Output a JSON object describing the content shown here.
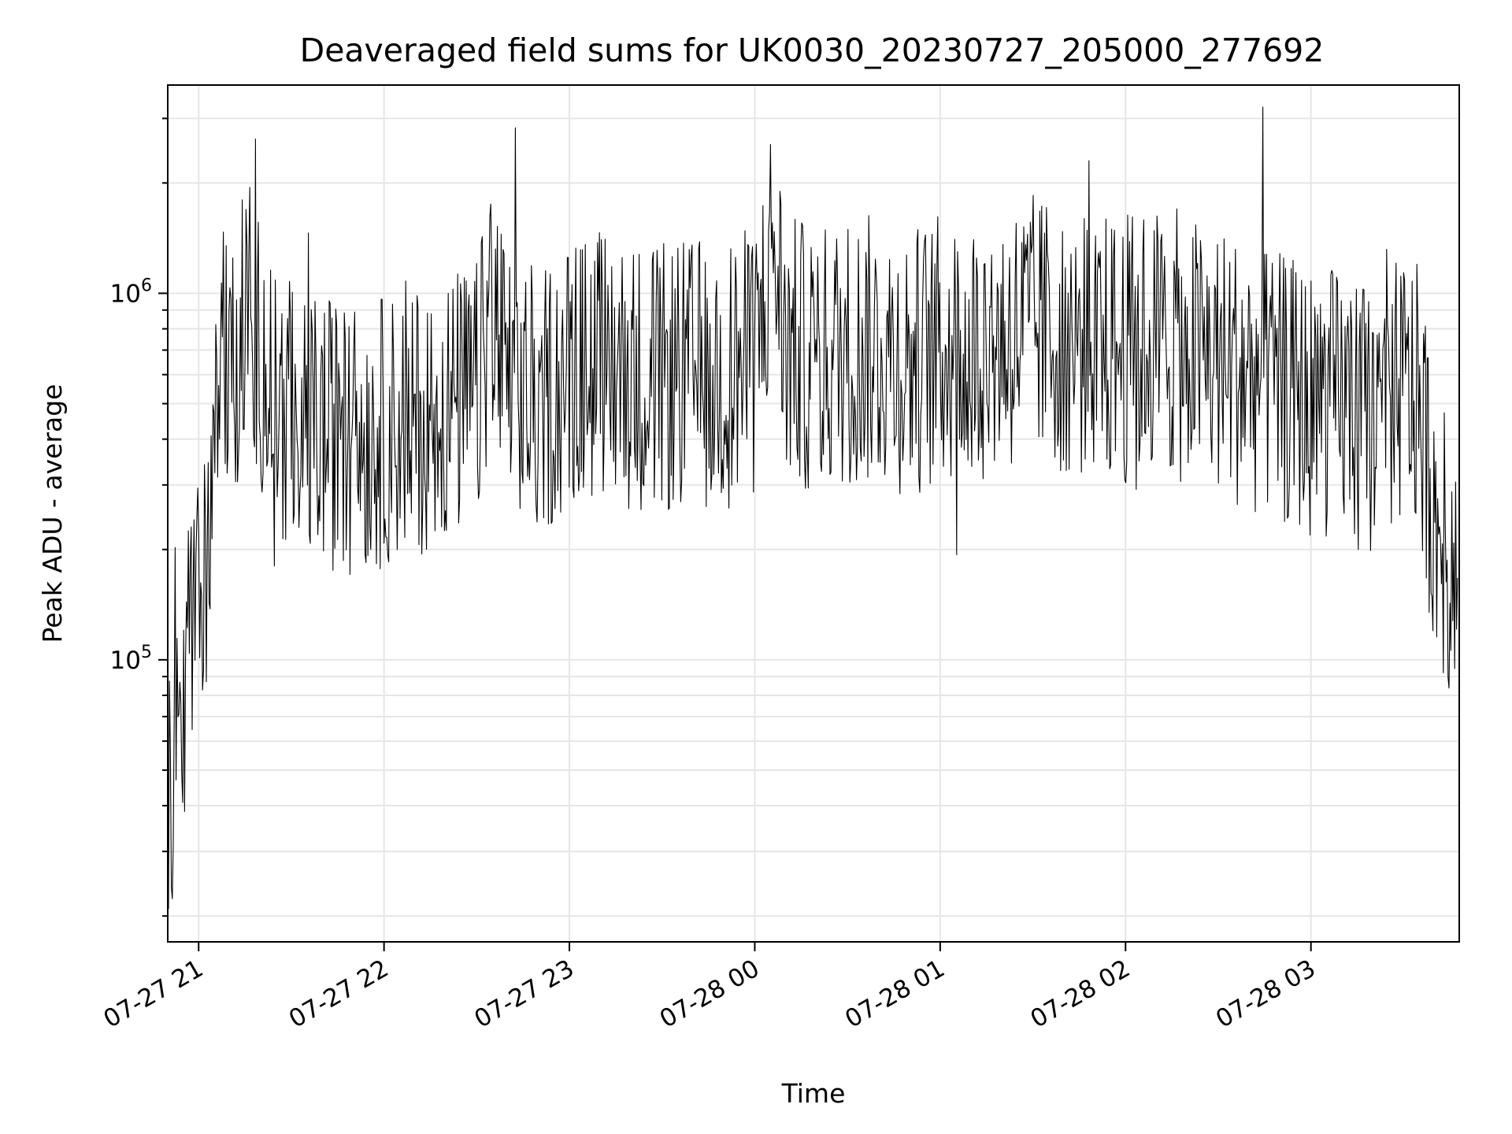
{
  "chart_data": {
    "type": "line",
    "title": "Deaveraged field sums for UK0030_20230727_205000_277692",
    "xlabel": "Time",
    "ylabel": "Peak ADU - average",
    "y_scale": "log",
    "ylim": [
      17000,
      3700000
    ],
    "xlim": [
      "2023-07-27 20:50",
      "2023-07-28 03:48"
    ],
    "x_ticks": [
      {
        "t": "2023-07-27 21:00",
        "label": "07-27 21"
      },
      {
        "t": "2023-07-27 22:00",
        "label": "07-27 22"
      },
      {
        "t": "2023-07-27 23:00",
        "label": "07-27 23"
      },
      {
        "t": "2023-07-28 00:00",
        "label": "07-28 00"
      },
      {
        "t": "2023-07-28 01:00",
        "label": "07-28 01"
      },
      {
        "t": "2023-07-28 02:00",
        "label": "07-28 02"
      },
      {
        "t": "2023-07-28 03:00",
        "label": "07-28 03"
      }
    ],
    "y_ticks": [
      {
        "value": 100000,
        "base": "10",
        "exp": "5"
      },
      {
        "value": 1000000,
        "base": "10",
        "exp": "6"
      }
    ],
    "grid": true,
    "line_color": "#000000",
    "grid_color": "#e6e6e6",
    "series": [
      {
        "x": [
          "2023-07-27 20:50",
          "2023-07-27 20:52",
          "2023-07-27 20:55",
          "2023-07-27 20:58",
          "2023-07-27 21:00",
          "2023-07-27 21:02",
          "2023-07-27 21:04",
          "2023-07-27 21:05",
          "2023-07-27 21:06",
          "2023-07-27 21:08",
          "2023-07-27 21:10",
          "2023-07-27 21:13",
          "2023-07-27 21:16",
          "2023-07-27 21:20",
          "2023-07-27 21:25",
          "2023-07-27 21:30",
          "2023-07-27 21:40",
          "2023-07-27 21:50",
          "2023-07-27 22:00",
          "2023-07-27 22:10",
          "2023-07-27 22:20",
          "2023-07-27 22:30",
          "2023-07-27 22:35",
          "2023-07-27 22:40",
          "2023-07-27 22:50",
          "2023-07-27 23:00",
          "2023-07-27 23:10",
          "2023-07-27 23:20",
          "2023-07-27 23:30",
          "2023-07-27 23:40",
          "2023-07-27 23:50",
          "2023-07-28 00:00",
          "2023-07-28 00:06",
          "2023-07-28 00:10",
          "2023-07-28 00:20",
          "2023-07-28 00:30",
          "2023-07-28 00:40",
          "2023-07-28 00:50",
          "2023-07-28 01:00",
          "2023-07-28 01:10",
          "2023-07-28 01:20",
          "2023-07-28 01:30",
          "2023-07-28 01:40",
          "2023-07-28 01:50",
          "2023-07-28 02:00",
          "2023-07-28 02:10",
          "2023-07-28 02:20",
          "2023-07-28 02:30",
          "2023-07-28 02:40",
          "2023-07-28 02:50",
          "2023-07-28 03:00",
          "2023-07-28 03:10",
          "2023-07-28 03:20",
          "2023-07-28 03:30",
          "2023-07-28 03:35",
          "2023-07-28 03:40",
          "2023-07-28 03:45",
          "2023-07-28 03:48"
        ],
        "y": [
          48000,
          52000,
          85000,
          115000,
          130000,
          160000,
          230000,
          450000,
          600000,
          650000,
          550000,
          750000,
          900000,
          700000,
          500000,
          450000,
          420000,
          400000,
          420000,
          450000,
          480000,
          520000,
          900000,
          550000,
          500000,
          600000,
          650000,
          600000,
          580000,
          600000,
          600000,
          650000,
          1400000,
          700000,
          650000,
          700000,
          700000,
          650000,
          700000,
          700000,
          750000,
          800000,
          750000,
          700000,
          700000,
          750000,
          700000,
          650000,
          600000,
          550000,
          500000,
          500000,
          450000,
          550000,
          500000,
          250000,
          180000,
          200000
        ]
      }
    ]
  }
}
